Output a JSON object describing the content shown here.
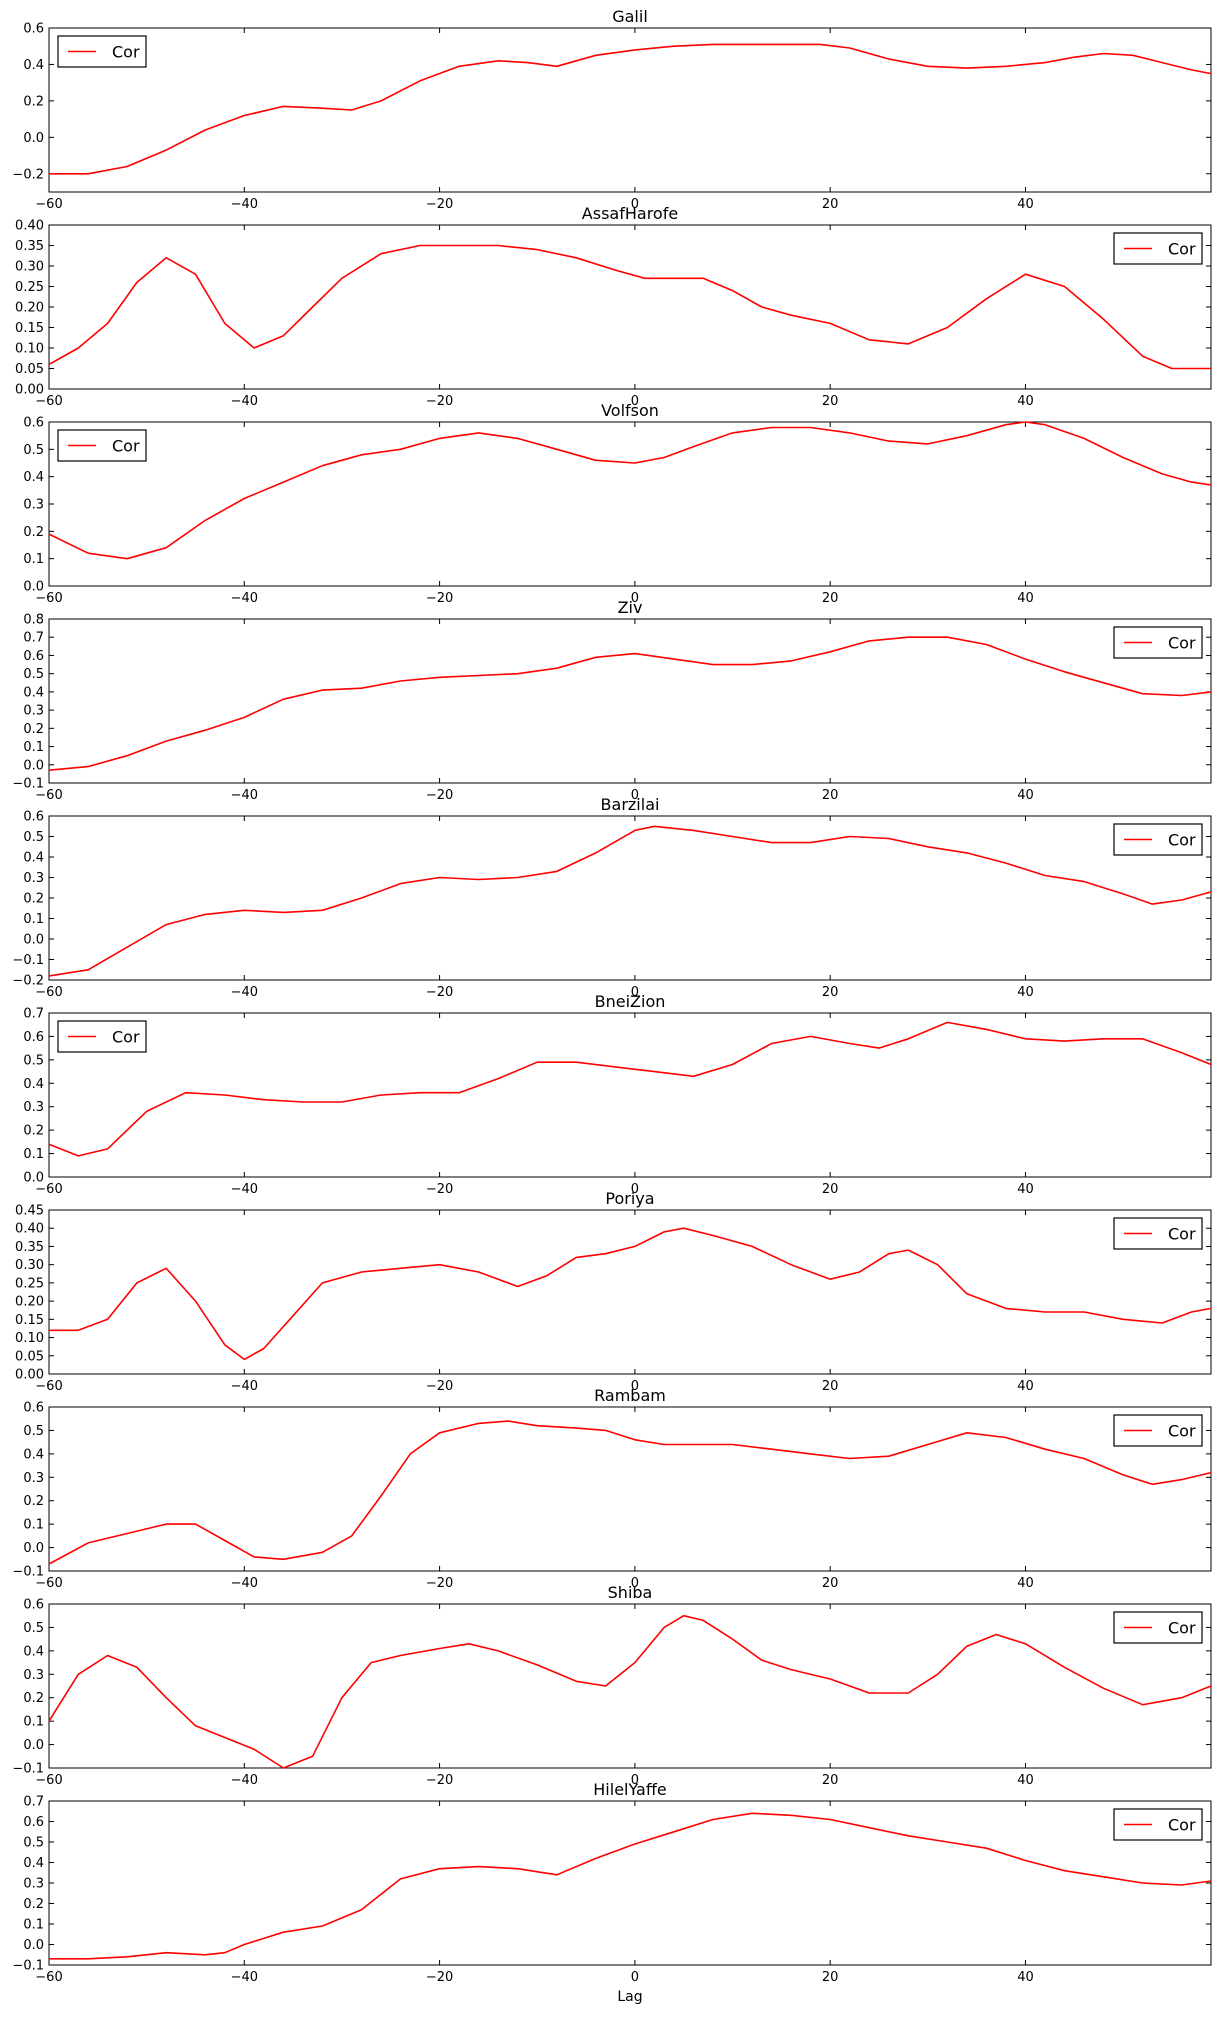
{
  "figure": {
    "xlabel": "Lag",
    "line_color": "#ff0000",
    "legend_label": "Cor"
  },
  "chart_data": [
    {
      "type": "line",
      "title": "Galil",
      "xlabel": "",
      "ylabel": "",
      "xlim": [
        -60,
        59
      ],
      "ylim": [
        -0.3,
        0.6
      ],
      "xticks": [
        -60,
        -40,
        -20,
        0,
        20,
        40
      ],
      "yticks": [
        -0.2,
        0.0,
        0.2,
        0.4,
        0.6
      ],
      "yformat": 1,
      "legend_position": "upper-left",
      "series": [
        {
          "name": "Cor",
          "x": [
            -60,
            -56,
            -52,
            -48,
            -44,
            -40,
            -36,
            -32,
            -29,
            -26,
            -22,
            -18,
            -14,
            -11,
            -8,
            -4,
            0,
            4,
            8,
            12,
            16,
            19,
            22,
            26,
            30,
            34,
            38,
            42,
            45,
            48,
            51,
            54,
            57,
            59
          ],
          "y": [
            -0.2,
            -0.2,
            -0.16,
            -0.07,
            0.04,
            0.12,
            0.17,
            0.16,
            0.15,
            0.2,
            0.31,
            0.39,
            0.42,
            0.41,
            0.39,
            0.45,
            0.48,
            0.5,
            0.51,
            0.51,
            0.51,
            0.51,
            0.49,
            0.43,
            0.39,
            0.38,
            0.39,
            0.41,
            0.44,
            0.46,
            0.45,
            0.41,
            0.37,
            0.35
          ]
        }
      ]
    },
    {
      "type": "line",
      "title": "AssafHarofe",
      "xlabel": "",
      "ylabel": "",
      "xlim": [
        -60,
        59
      ],
      "ylim": [
        0.0,
        0.4
      ],
      "xticks": [
        -60,
        -40,
        -20,
        0,
        20,
        40
      ],
      "yticks": [
        0.0,
        0.05,
        0.1,
        0.15,
        0.2,
        0.25,
        0.3,
        0.35,
        0.4
      ],
      "yformat": 2,
      "legend_position": "upper-right",
      "series": [
        {
          "name": "Cor",
          "x": [
            -60,
            -57,
            -54,
            -51,
            -48,
            -45,
            -42,
            -39,
            -36,
            -33,
            -30,
            -26,
            -22,
            -18,
            -14,
            -10,
            -6,
            -2,
            1,
            4,
            7,
            10,
            13,
            16,
            20,
            24,
            28,
            32,
            36,
            40,
            44,
            48,
            52,
            55,
            59
          ],
          "y": [
            0.06,
            0.1,
            0.16,
            0.26,
            0.32,
            0.28,
            0.16,
            0.1,
            0.13,
            0.2,
            0.27,
            0.33,
            0.35,
            0.35,
            0.35,
            0.34,
            0.32,
            0.29,
            0.27,
            0.27,
            0.27,
            0.24,
            0.2,
            0.18,
            0.16,
            0.12,
            0.11,
            0.15,
            0.22,
            0.28,
            0.25,
            0.17,
            0.08,
            0.05,
            0.05
          ]
        }
      ]
    },
    {
      "type": "line",
      "title": "Volfson",
      "xlabel": "",
      "ylabel": "",
      "xlim": [
        -60,
        59
      ],
      "ylim": [
        0.0,
        0.6
      ],
      "xticks": [
        -60,
        -40,
        -20,
        0,
        20,
        40
      ],
      "yticks": [
        0.0,
        0.1,
        0.2,
        0.3,
        0.4,
        0.5,
        0.6
      ],
      "yformat": 1,
      "legend_position": "upper-left",
      "series": [
        {
          "name": "Cor",
          "x": [
            -60,
            -56,
            -52,
            -48,
            -44,
            -40,
            -36,
            -32,
            -28,
            -24,
            -20,
            -16,
            -12,
            -8,
            -4,
            0,
            3,
            6,
            10,
            14,
            18,
            22,
            26,
            30,
            34,
            38,
            40,
            42,
            46,
            50,
            54,
            57,
            59
          ],
          "y": [
            0.19,
            0.12,
            0.1,
            0.14,
            0.24,
            0.32,
            0.38,
            0.44,
            0.48,
            0.5,
            0.54,
            0.56,
            0.54,
            0.5,
            0.46,
            0.45,
            0.47,
            0.51,
            0.56,
            0.58,
            0.58,
            0.56,
            0.53,
            0.52,
            0.55,
            0.59,
            0.6,
            0.59,
            0.54,
            0.47,
            0.41,
            0.38,
            0.37
          ]
        }
      ]
    },
    {
      "type": "line",
      "title": "Ziv",
      "xlabel": "",
      "ylabel": "",
      "xlim": [
        -60,
        59
      ],
      "ylim": [
        -0.1,
        0.8
      ],
      "xticks": [
        -60,
        -40,
        -20,
        0,
        20,
        40
      ],
      "yticks": [
        -0.1,
        0.0,
        0.1,
        0.2,
        0.3,
        0.4,
        0.5,
        0.6,
        0.7,
        0.8
      ],
      "yformat": 1,
      "legend_position": "upper-right",
      "series": [
        {
          "name": "Cor",
          "x": [
            -60,
            -56,
            -52,
            -48,
            -44,
            -40,
            -36,
            -32,
            -28,
            -24,
            -20,
            -16,
            -12,
            -8,
            -4,
            0,
            4,
            8,
            12,
            16,
            20,
            24,
            28,
            32,
            36,
            40,
            44,
            48,
            52,
            56,
            59
          ],
          "y": [
            -0.03,
            -0.01,
            0.05,
            0.13,
            0.19,
            0.26,
            0.36,
            0.41,
            0.42,
            0.46,
            0.48,
            0.49,
            0.5,
            0.53,
            0.59,
            0.61,
            0.58,
            0.55,
            0.55,
            0.57,
            0.62,
            0.68,
            0.7,
            0.7,
            0.66,
            0.58,
            0.51,
            0.45,
            0.39,
            0.38,
            0.4
          ]
        }
      ]
    },
    {
      "type": "line",
      "title": "Barzilai",
      "xlabel": "",
      "ylabel": "",
      "xlim": [
        -60,
        59
      ],
      "ylim": [
        -0.2,
        0.6
      ],
      "xticks": [
        -60,
        -40,
        -20,
        0,
        20,
        40
      ],
      "yticks": [
        -0.2,
        -0.1,
        0.0,
        0.1,
        0.2,
        0.3,
        0.4,
        0.5,
        0.6
      ],
      "yformat": 1,
      "legend_position": "upper-right",
      "series": [
        {
          "name": "Cor",
          "x": [
            -60,
            -56,
            -52,
            -48,
            -44,
            -40,
            -36,
            -32,
            -28,
            -24,
            -20,
            -16,
            -12,
            -8,
            -4,
            0,
            2,
            6,
            10,
            14,
            18,
            22,
            26,
            30,
            34,
            38,
            42,
            46,
            50,
            53,
            56,
            59
          ],
          "y": [
            -0.18,
            -0.15,
            -0.04,
            0.07,
            0.12,
            0.14,
            0.13,
            0.14,
            0.2,
            0.27,
            0.3,
            0.29,
            0.3,
            0.33,
            0.42,
            0.53,
            0.55,
            0.53,
            0.5,
            0.47,
            0.47,
            0.5,
            0.49,
            0.45,
            0.42,
            0.37,
            0.31,
            0.28,
            0.22,
            0.17,
            0.19,
            0.23
          ]
        }
      ]
    },
    {
      "type": "line",
      "title": "BneiZion",
      "xlabel": "",
      "ylabel": "",
      "xlim": [
        -60,
        59
      ],
      "ylim": [
        0.0,
        0.7
      ],
      "xticks": [
        -60,
        -40,
        -20,
        0,
        20,
        40
      ],
      "yticks": [
        0.0,
        0.1,
        0.2,
        0.3,
        0.4,
        0.5,
        0.6,
        0.7
      ],
      "yformat": 1,
      "legend_position": "upper-left",
      "series": [
        {
          "name": "Cor",
          "x": [
            -60,
            -57,
            -54,
            -50,
            -46,
            -42,
            -38,
            -34,
            -30,
            -26,
            -22,
            -18,
            -14,
            -10,
            -6,
            -2,
            2,
            6,
            10,
            14,
            18,
            22,
            25,
            28,
            32,
            36,
            40,
            44,
            48,
            52,
            56,
            59
          ],
          "y": [
            0.14,
            0.09,
            0.12,
            0.28,
            0.36,
            0.35,
            0.33,
            0.32,
            0.32,
            0.35,
            0.36,
            0.36,
            0.42,
            0.49,
            0.49,
            0.47,
            0.45,
            0.43,
            0.48,
            0.57,
            0.6,
            0.57,
            0.55,
            0.59,
            0.66,
            0.63,
            0.59,
            0.58,
            0.59,
            0.59,
            0.53,
            0.48
          ]
        }
      ]
    },
    {
      "type": "line",
      "title": "Poriya",
      "xlabel": "",
      "ylabel": "",
      "xlim": [
        -60,
        59
      ],
      "ylim": [
        0.0,
        0.45
      ],
      "xticks": [
        -60,
        -40,
        -20,
        0,
        20,
        40
      ],
      "yticks": [
        0.0,
        0.05,
        0.1,
        0.15,
        0.2,
        0.25,
        0.3,
        0.35,
        0.4,
        0.45
      ],
      "yformat": 2,
      "legend_position": "upper-right",
      "series": [
        {
          "name": "Cor",
          "x": [
            -60,
            -57,
            -54,
            -51,
            -48,
            -45,
            -42,
            -40,
            -38,
            -35,
            -32,
            -28,
            -24,
            -20,
            -16,
            -12,
            -9,
            -6,
            -3,
            0,
            3,
            5,
            8,
            12,
            16,
            20,
            23,
            26,
            28,
            31,
            34,
            38,
            42,
            46,
            50,
            54,
            57,
            59
          ],
          "y": [
            0.12,
            0.12,
            0.15,
            0.25,
            0.29,
            0.2,
            0.08,
            0.04,
            0.07,
            0.16,
            0.25,
            0.28,
            0.29,
            0.3,
            0.28,
            0.24,
            0.27,
            0.32,
            0.33,
            0.35,
            0.39,
            0.4,
            0.38,
            0.35,
            0.3,
            0.26,
            0.28,
            0.33,
            0.34,
            0.3,
            0.22,
            0.18,
            0.17,
            0.17,
            0.15,
            0.14,
            0.17,
            0.18
          ]
        }
      ]
    },
    {
      "type": "line",
      "title": "Rambam",
      "xlabel": "",
      "ylabel": "",
      "xlim": [
        -60,
        59
      ],
      "ylim": [
        -0.1,
        0.6
      ],
      "xticks": [
        -60,
        -40,
        -20,
        0,
        20,
        40
      ],
      "yticks": [
        -0.1,
        0.0,
        0.1,
        0.2,
        0.3,
        0.4,
        0.5,
        0.6
      ],
      "yformat": 1,
      "legend_position": "upper-right",
      "series": [
        {
          "name": "Cor",
          "x": [
            -60,
            -56,
            -52,
            -48,
            -45,
            -42,
            -39,
            -36,
            -32,
            -29,
            -26,
            -23,
            -20,
            -16,
            -13,
            -10,
            -6,
            -3,
            0,
            3,
            7,
            10,
            14,
            18,
            22,
            26,
            30,
            34,
            38,
            42,
            46,
            50,
            53,
            56,
            59
          ],
          "y": [
            -0.07,
            0.02,
            0.06,
            0.1,
            0.1,
            0.03,
            -0.04,
            -0.05,
            -0.02,
            0.05,
            0.22,
            0.4,
            0.49,
            0.53,
            0.54,
            0.52,
            0.51,
            0.5,
            0.46,
            0.44,
            0.44,
            0.44,
            0.42,
            0.4,
            0.38,
            0.39,
            0.44,
            0.49,
            0.47,
            0.42,
            0.38,
            0.31,
            0.27,
            0.29,
            0.32
          ]
        }
      ]
    },
    {
      "type": "line",
      "title": "Shiba",
      "xlabel": "",
      "ylabel": "",
      "xlim": [
        -60,
        59
      ],
      "ylim": [
        -0.1,
        0.6
      ],
      "xticks": [
        -60,
        -40,
        -20,
        0,
        20,
        40
      ],
      "yticks": [
        -0.1,
        0.0,
        0.1,
        0.2,
        0.3,
        0.4,
        0.5,
        0.6
      ],
      "yformat": 1,
      "legend_position": "upper-right",
      "series": [
        {
          "name": "Cor",
          "x": [
            -60,
            -57,
            -54,
            -51,
            -48,
            -45,
            -42,
            -39,
            -36,
            -33,
            -30,
            -27,
            -24,
            -20,
            -17,
            -14,
            -10,
            -6,
            -3,
            0,
            3,
            5,
            7,
            10,
            13,
            16,
            20,
            24,
            28,
            31,
            34,
            37,
            40,
            44,
            48,
            52,
            56,
            59
          ],
          "y": [
            0.1,
            0.3,
            0.38,
            0.33,
            0.2,
            0.08,
            0.03,
            -0.02,
            -0.1,
            -0.05,
            0.2,
            0.35,
            0.38,
            0.41,
            0.43,
            0.4,
            0.34,
            0.27,
            0.25,
            0.35,
            0.5,
            0.55,
            0.53,
            0.45,
            0.36,
            0.32,
            0.28,
            0.22,
            0.22,
            0.3,
            0.42,
            0.47,
            0.43,
            0.33,
            0.24,
            0.17,
            0.2,
            0.25
          ]
        }
      ]
    },
    {
      "type": "line",
      "title": "HilelYaffe",
      "xlabel": "Lag",
      "ylabel": "",
      "xlim": [
        -60,
        59
      ],
      "ylim": [
        -0.1,
        0.7
      ],
      "xticks": [
        -60,
        -40,
        -20,
        0,
        20,
        40
      ],
      "yticks": [
        -0.1,
        0.0,
        0.1,
        0.2,
        0.3,
        0.4,
        0.5,
        0.6,
        0.7
      ],
      "yformat": 1,
      "legend_position": "upper-right",
      "series": [
        {
          "name": "Cor",
          "x": [
            -60,
            -56,
            -52,
            -48,
            -44,
            -42,
            -40,
            -36,
            -32,
            -28,
            -24,
            -20,
            -16,
            -12,
            -8,
            -4,
            0,
            4,
            8,
            12,
            16,
            20,
            24,
            28,
            32,
            36,
            40,
            44,
            48,
            52,
            56,
            59
          ],
          "y": [
            -0.07,
            -0.07,
            -0.06,
            -0.04,
            -0.05,
            -0.04,
            0.0,
            0.06,
            0.09,
            0.17,
            0.32,
            0.37,
            0.38,
            0.37,
            0.34,
            0.42,
            0.49,
            0.55,
            0.61,
            0.64,
            0.63,
            0.61,
            0.57,
            0.53,
            0.5,
            0.47,
            0.41,
            0.36,
            0.33,
            0.3,
            0.29,
            0.31
          ]
        }
      ]
    }
  ]
}
